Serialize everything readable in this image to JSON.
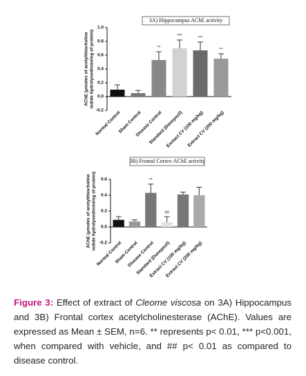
{
  "chart_data": [
    {
      "type": "bar",
      "title": "3A) Hippocampus AChE activity",
      "ylabel": [
        "AChE (μmoles of acetylthiocholine",
        "iodide hydrolysed/min/mg of protein)"
      ],
      "categories": [
        "Normal Control",
        "Sham Control",
        "Disease Control",
        "Standard (Donepezil)",
        "Exctact CV (100 mg/kg)",
        "Extract CV (200 mg/kg)"
      ],
      "values": [
        0.1,
        0.05,
        0.53,
        0.7,
        0.67,
        0.55
      ],
      "errors": [
        0.07,
        0.04,
        0.12,
        0.12,
        0.12,
        0.07
      ],
      "annotations": [
        null,
        null,
        "**",
        "***",
        "***",
        "**"
      ],
      "colors": [
        "#111111",
        "#777777",
        "#888888",
        "#d2d2d2",
        "#6a6a6a",
        "#9a9a9a"
      ],
      "ylim": [
        -0.2,
        1.0
      ],
      "yticks": [
        -0.2,
        {
          "value": 0,
          "label": "0.0"
        },
        0.2,
        0.4,
        0.6,
        0.8,
        {
          "value": 1,
          "label": "1.0"
        }
      ]
    },
    {
      "type": "bar",
      "title": "3B) Frontal Cortex-AChE activity",
      "ylabel": [
        "AChE (μmoles of acetylthiocholine",
        "iodide hydrolysed/min/mg of protein)"
      ],
      "categories": [
        "Normal Control",
        "Sham Control",
        "Disease Control",
        "Standard (Donepezil)",
        "Extract CV (100 mg/kg)",
        "Extract CV (200 mg/kg)"
      ],
      "values": [
        0.09,
        0.07,
        0.43,
        0.06,
        0.41,
        0.4
      ],
      "errors": [
        0.04,
        0.02,
        0.11,
        0.07,
        0.03,
        0.1
      ],
      "annotations": [
        null,
        null,
        "**",
        "##",
        null,
        null
      ],
      "colors": [
        "#111111",
        "#999999",
        "#777777",
        "#e2e2e2",
        "#777777",
        "#aaaaaa"
      ],
      "ylim": [
        -0.2,
        0.6
      ],
      "yticks": [
        -0.2,
        {
          "value": 0,
          "label": "0.0"
        },
        0.2,
        0.4,
        0.6
      ]
    }
  ],
  "caption": {
    "label": "Figure 3:",
    "text_before": "Effect of extract of",
    "species": "Cleome viscosa",
    "text_after": "on 3A) Hippocampus and 3B) Frontal cortex acetylcholinesterase (AChE). Values are expressed as Mean ± SEM, n=6. ** represents p< 0.01, *** p<0.001, when compared with vehicle, and ## p< 0.01 as compared to disease control."
  }
}
